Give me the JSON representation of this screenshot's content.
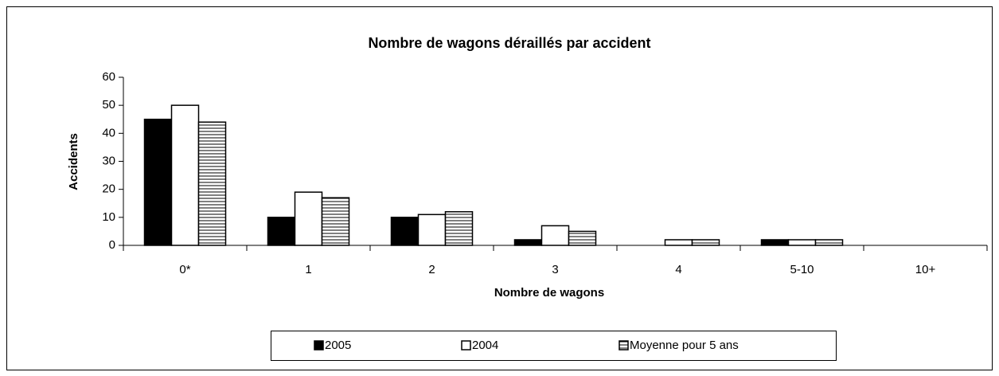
{
  "chart_data": {
    "type": "bar",
    "title": "Nombre de wagons déraillés par accident",
    "x_label": "Nombre de wagons",
    "y_label": "Accidents",
    "categories": [
      "0*",
      "1",
      "2",
      "3",
      "4",
      "5-10",
      "10+"
    ],
    "series": [
      {
        "name": "2005",
        "color": "#000000",
        "values": [
          45,
          10,
          10,
          2,
          0,
          2,
          0
        ]
      },
      {
        "name": "2004",
        "color": "#ffffff",
        "values": [
          50,
          19,
          11,
          7,
          2,
          2,
          0
        ]
      },
      {
        "name": "Moyenne pour 5 ans",
        "color": "#ffffff",
        "hatch": "horizontal",
        "values": [
          44,
          17,
          12,
          5,
          2,
          2,
          0
        ]
      }
    ],
    "ylim": [
      0,
      60
    ],
    "yticks": [
      0,
      10,
      20,
      30,
      40,
      50,
      60
    ],
    "legend": "bottom"
  }
}
